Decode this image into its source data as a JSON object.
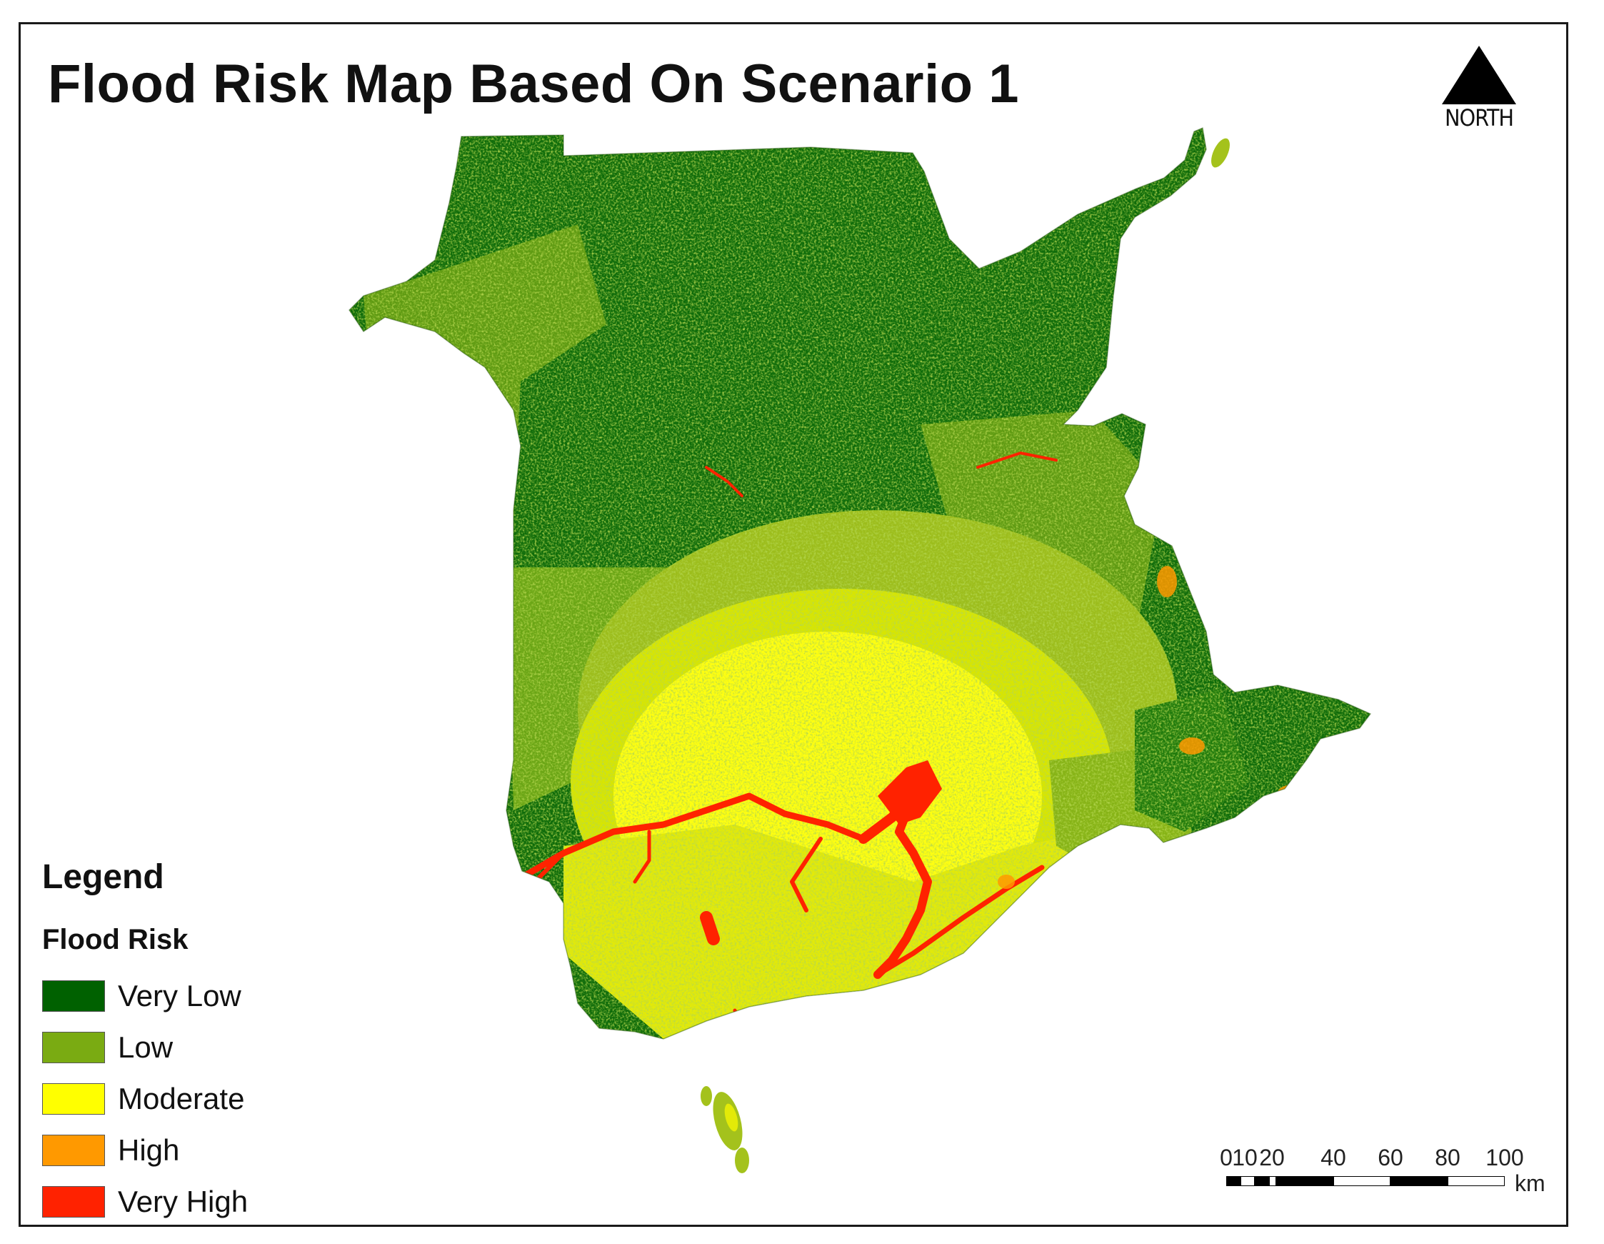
{
  "title": "Flood Risk Map Based On Scenario 1",
  "north_arrow": {
    "label": "NORTH",
    "icon": "north-arrow-icon"
  },
  "legend": {
    "title": "Legend",
    "subtitle": "Flood Risk",
    "items": [
      {
        "label": "Very Low",
        "color": "#006100"
      },
      {
        "label": "Low",
        "color": "#7aab12"
      },
      {
        "label": "Moderate",
        "color": "#ffff00"
      },
      {
        "label": "High",
        "color": "#ff9900"
      },
      {
        "label": "Very High",
        "color": "#ff2200"
      }
    ]
  },
  "scale_bar": {
    "ticks": [
      "0",
      "10",
      "20",
      "40",
      "60",
      "80",
      "100"
    ],
    "tick_values_km": [
      0,
      10,
      20,
      40,
      60,
      80,
      100
    ],
    "unit": "km"
  }
}
